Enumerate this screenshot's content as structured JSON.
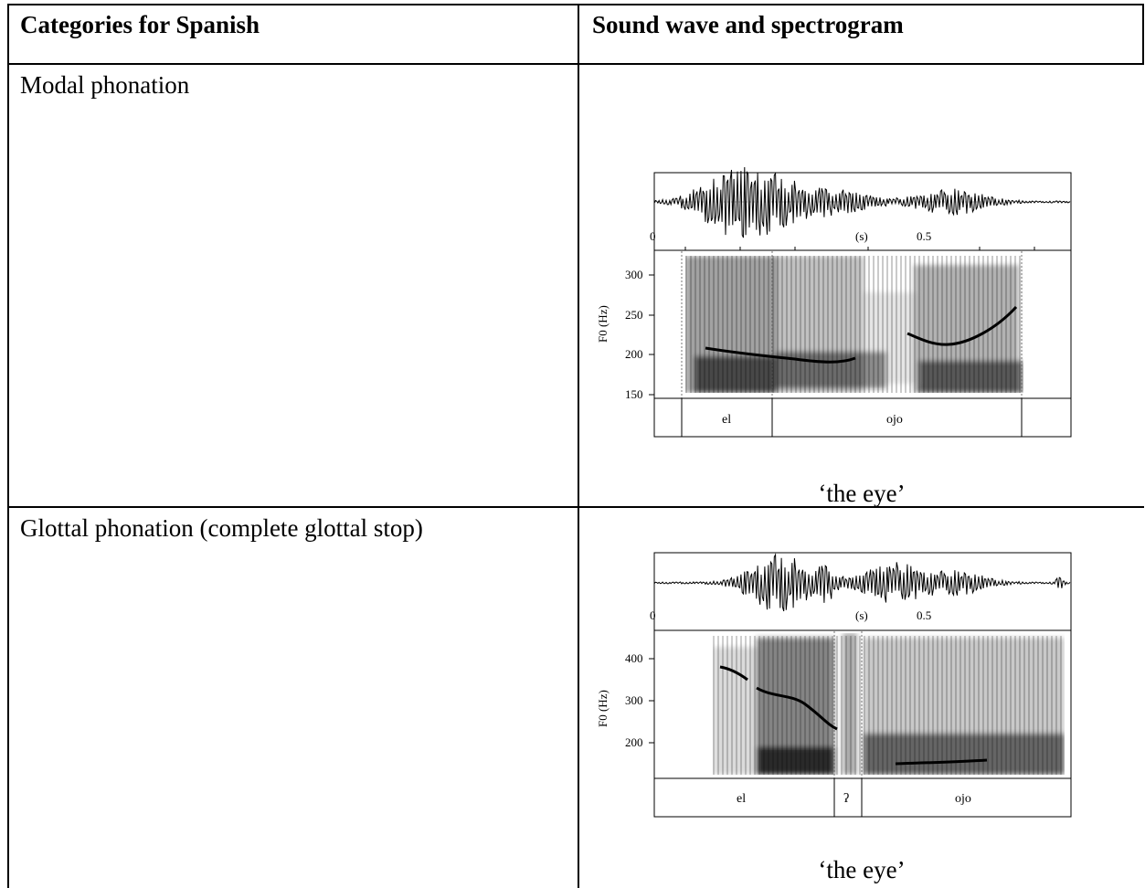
{
  "table": {
    "headers": [
      "Categories for Spanish",
      "Sound wave and spectrogram"
    ],
    "rows": [
      {
        "category": "Modal phonation",
        "figure": {
          "time_ticks": [
            "0",
            "(s)",
            "0.5"
          ],
          "y_axis_label": "F0 (Hz)",
          "y_ticks": [
            "300",
            "250",
            "200",
            "150"
          ],
          "segments": [
            "el",
            "ojo"
          ],
          "caption": "‘the eye’"
        }
      },
      {
        "category": "Glottal phonation (complete glottal stop)",
        "figure": {
          "time_ticks": [
            "0",
            "(s)",
            "0.5"
          ],
          "y_axis_label": "F0 (Hz)",
          "y_ticks": [
            "400",
            "300",
            "200"
          ],
          "segments": [
            "el",
            "ʔ",
            "ojo"
          ],
          "caption": "‘the eye’"
        }
      }
    ]
  }
}
